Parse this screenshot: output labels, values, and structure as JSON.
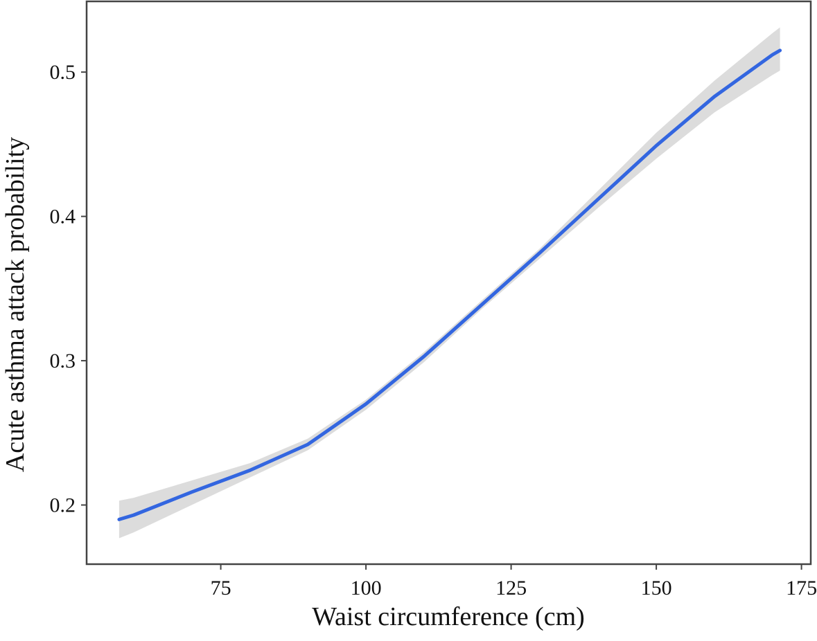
{
  "chart_data": {
    "type": "line",
    "x_label": "Waist circumference (cm)",
    "y_label": "Acute asthma attack probability",
    "x": [
      57.5,
      60,
      70,
      80,
      90,
      100,
      110,
      120,
      130,
      140,
      150,
      160,
      170,
      171.3
    ],
    "values": [
      0.19,
      0.193,
      0.209,
      0.224,
      0.242,
      0.27,
      0.303,
      0.339,
      0.375,
      0.412,
      0.449,
      0.483,
      0.512,
      0.515
    ],
    "lower": [
      0.177,
      0.181,
      0.2,
      0.219,
      0.238,
      0.266,
      0.299,
      0.336,
      0.371,
      0.406,
      0.44,
      0.472,
      0.498,
      0.501
    ],
    "upper": [
      0.203,
      0.205,
      0.217,
      0.229,
      0.246,
      0.273,
      0.306,
      0.342,
      0.378,
      0.418,
      0.458,
      0.494,
      0.527,
      0.531
    ],
    "color": "#3366e0",
    "band_color": "#dcdcdc",
    "xlim": [
      51.9,
      176.6
    ],
    "ylim": [
      0.159,
      0.549
    ],
    "xticks": [
      75,
      100,
      125,
      150,
      175
    ],
    "yticks": [
      0.2,
      0.3,
      0.4,
      0.5
    ]
  }
}
